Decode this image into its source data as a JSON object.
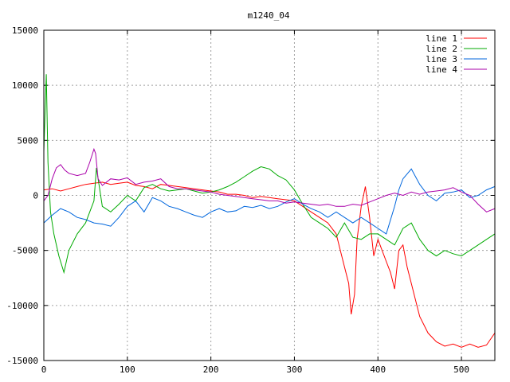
{
  "chart_data": {
    "type": "line",
    "title": "m1240_04",
    "xlabel": "",
    "ylabel": "",
    "xlim": [
      0,
      540
    ],
    "ylim": [
      -15000,
      15000
    ],
    "x_ticks": [
      0,
      100,
      200,
      300,
      400,
      500
    ],
    "y_ticks": [
      -15000,
      -10000,
      -5000,
      0,
      5000,
      10000,
      15000
    ],
    "grid": true,
    "legend_position": "top-right",
    "series": [
      {
        "name": "line 1",
        "color": "#ff0000",
        "x": [
          0,
          10,
          20,
          30,
          40,
          50,
          60,
          70,
          80,
          90,
          100,
          110,
          120,
          130,
          140,
          150,
          160,
          170,
          180,
          190,
          200,
          210,
          220,
          230,
          240,
          250,
          260,
          270,
          280,
          290,
          300,
          310,
          320,
          330,
          340,
          350,
          355,
          360,
          365,
          368,
          372,
          375,
          380,
          385,
          390,
          395,
          400,
          405,
          410,
          415,
          420,
          425,
          430,
          435,
          440,
          445,
          450,
          460,
          470,
          480,
          490,
          500,
          510,
          520,
          530,
          540
        ],
        "y": [
          500,
          600,
          400,
          600,
          800,
          1000,
          1100,
          1200,
          1000,
          1100,
          1200,
          900,
          800,
          600,
          1000,
          900,
          800,
          700,
          600,
          500,
          400,
          300,
          100,
          100,
          0,
          -200,
          -100,
          -200,
          -300,
          -400,
          -500,
          -1000,
          -1500,
          -2000,
          -2500,
          -3500,
          -5000,
          -6500,
          -8000,
          -10800,
          -9000,
          -4000,
          -1000,
          800,
          -2000,
          -5500,
          -4000,
          -5000,
          -6000,
          -7000,
          -8500,
          -5000,
          -4500,
          -6500,
          -8000,
          -9500,
          -11000,
          -12500,
          -13300,
          -13700,
          -13500,
          -13800,
          -13500,
          -13800,
          -13600,
          -12500
        ]
      },
      {
        "name": "line 2",
        "color": "#00aa00",
        "x": [
          0,
          3,
          5,
          8,
          12,
          18,
          24,
          30,
          40,
          50,
          60,
          63,
          66,
          70,
          80,
          90,
          100,
          110,
          120,
          130,
          140,
          150,
          160,
          170,
          180,
          190,
          200,
          210,
          220,
          230,
          240,
          250,
          260,
          270,
          280,
          290,
          300,
          310,
          320,
          330,
          340,
          350,
          360,
          370,
          380,
          390,
          400,
          410,
          420,
          430,
          440,
          450,
          460,
          470,
          480,
          490,
          500,
          510,
          520,
          530,
          540
        ],
        "y": [
          4000,
          11000,
          3000,
          -1500,
          -3500,
          -5500,
          -7000,
          -5000,
          -3500,
          -2500,
          -500,
          2500,
          1000,
          -1000,
          -1500,
          -800,
          0,
          -500,
          700,
          1000,
          600,
          400,
          500,
          600,
          400,
          200,
          300,
          500,
          800,
          1200,
          1700,
          2200,
          2600,
          2400,
          1800,
          1400,
          500,
          -800,
          -2000,
          -2500,
          -3000,
          -3800,
          -2500,
          -3800,
          -4000,
          -3500,
          -3500,
          -4000,
          -4500,
          -3000,
          -2500,
          -4000,
          -5000,
          -5500,
          -5000,
          -5300,
          -5500,
          -5000,
          -4500,
          -4000,
          -3500
        ]
      },
      {
        "name": "line 3",
        "color": "#0066dd",
        "x": [
          0,
          10,
          20,
          30,
          40,
          50,
          60,
          70,
          80,
          90,
          100,
          110,
          120,
          130,
          140,
          150,
          160,
          170,
          180,
          190,
          200,
          210,
          220,
          230,
          240,
          250,
          260,
          270,
          280,
          290,
          300,
          310,
          320,
          330,
          340,
          350,
          360,
          370,
          380,
          390,
          400,
          410,
          420,
          425,
          430,
          440,
          450,
          460,
          470,
          480,
          490,
          500,
          510,
          520,
          530,
          540
        ],
        "y": [
          -2500,
          -1800,
          -1200,
          -1500,
          -2000,
          -2200,
          -2500,
          -2600,
          -2800,
          -2000,
          -1000,
          -500,
          -1500,
          -200,
          -500,
          -1000,
          -1200,
          -1500,
          -1800,
          -2000,
          -1500,
          -1200,
          -1500,
          -1400,
          -1000,
          -1100,
          -900,
          -1200,
          -1000,
          -600,
          -300,
          -800,
          -1200,
          -1500,
          -2000,
          -1500,
          -2000,
          -2500,
          -2000,
          -2500,
          -3000,
          -3500,
          -1000,
          500,
          1500,
          2400,
          1000,
          0,
          -500,
          200,
          300,
          500,
          -200,
          0,
          500,
          800
        ]
      },
      {
        "name": "line 4",
        "color": "#aa00aa",
        "x": [
          0,
          5,
          10,
          15,
          20,
          25,
          30,
          40,
          50,
          55,
          60,
          62,
          65,
          70,
          80,
          90,
          100,
          110,
          120,
          130,
          140,
          150,
          160,
          170,
          180,
          190,
          200,
          210,
          220,
          230,
          240,
          250,
          260,
          270,
          280,
          290,
          300,
          310,
          320,
          330,
          340,
          350,
          360,
          370,
          380,
          390,
          400,
          410,
          420,
          430,
          440,
          450,
          460,
          470,
          480,
          490,
          500,
          510,
          520,
          530,
          540
        ],
        "y": [
          -500,
          0,
          1500,
          2500,
          2800,
          2300,
          2000,
          1800,
          2000,
          3000,
          4200,
          3800,
          1500,
          900,
          1500,
          1400,
          1600,
          1000,
          1200,
          1300,
          1500,
          800,
          600,
          600,
          500,
          400,
          300,
          100,
          0,
          -100,
          -200,
          -300,
          -400,
          -500,
          -500,
          -700,
          -600,
          -700,
          -800,
          -900,
          -800,
          -1000,
          -1000,
          -800,
          -900,
          -600,
          -300,
          0,
          200,
          0,
          300,
          100,
          300,
          400,
          500,
          700,
          300,
          0,
          -800,
          -1500,
          -1200
        ]
      }
    ]
  }
}
